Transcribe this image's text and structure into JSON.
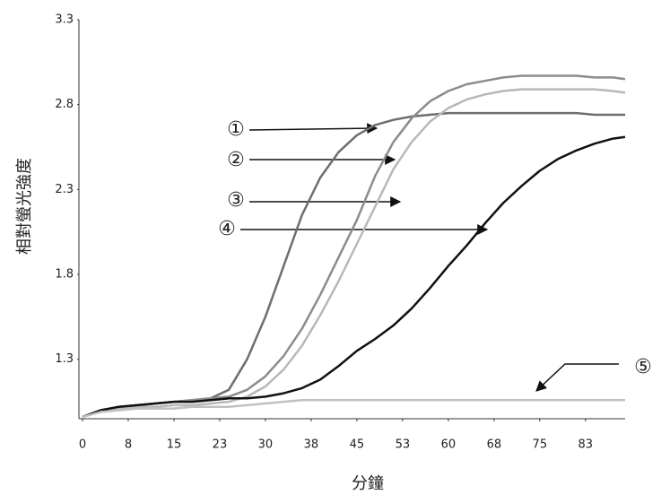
{
  "chart_data": {
    "type": "line",
    "x_label": "分鐘",
    "y_label": "相對螢光強度",
    "x": [
      0,
      3,
      6,
      9,
      12,
      15,
      18,
      21,
      24,
      27,
      30,
      33,
      36,
      39,
      42,
      45,
      48,
      51,
      54,
      57,
      60,
      63,
      66,
      69,
      72,
      75,
      78,
      81,
      84,
      87,
      89
    ],
    "series": [
      {
        "color": "#6e6e6e",
        "values": [
          0.96,
          1.0,
          1.02,
          1.03,
          1.04,
          1.05,
          1.06,
          1.07,
          1.12,
          1.3,
          1.55,
          1.85,
          2.15,
          2.37,
          2.52,
          2.62,
          2.68,
          2.71,
          2.73,
          2.74,
          2.75,
          2.75,
          2.75,
          2.75,
          2.75,
          2.75,
          2.75,
          2.75,
          2.74,
          2.74,
          2.74
        ]
      },
      {
        "color": "#8c8c8c",
        "values": [
          0.96,
          1.0,
          1.02,
          1.03,
          1.04,
          1.05,
          1.06,
          1.07,
          1.08,
          1.12,
          1.2,
          1.32,
          1.48,
          1.68,
          1.9,
          2.12,
          2.38,
          2.58,
          2.72,
          2.82,
          2.88,
          2.92,
          2.94,
          2.96,
          2.97,
          2.97,
          2.97,
          2.97,
          2.96,
          2.96,
          2.95
        ]
      },
      {
        "color": "#b8b8b8",
        "values": [
          0.96,
          1.0,
          1.01,
          1.02,
          1.02,
          1.03,
          1.03,
          1.04,
          1.05,
          1.08,
          1.14,
          1.24,
          1.38,
          1.56,
          1.76,
          1.98,
          2.2,
          2.42,
          2.58,
          2.7,
          2.78,
          2.83,
          2.86,
          2.88,
          2.89,
          2.89,
          2.89,
          2.89,
          2.89,
          2.88,
          2.87
        ]
      },
      {
        "color": "#111111",
        "values": [
          0.96,
          1.0,
          1.02,
          1.03,
          1.04,
          1.05,
          1.05,
          1.06,
          1.07,
          1.07,
          1.08,
          1.1,
          1.13,
          1.18,
          1.26,
          1.35,
          1.42,
          1.5,
          1.6,
          1.72,
          1.85,
          1.97,
          2.1,
          2.22,
          2.32,
          2.41,
          2.48,
          2.53,
          2.57,
          2.6,
          2.61
        ]
      },
      {
        "color": "#c0c0c0",
        "values": [
          0.96,
          0.99,
          1.0,
          1.01,
          1.01,
          1.01,
          1.02,
          1.02,
          1.02,
          1.03,
          1.04,
          1.05,
          1.06,
          1.06,
          1.06,
          1.06,
          1.06,
          1.06,
          1.06,
          1.06,
          1.06,
          1.06,
          1.06,
          1.06,
          1.06,
          1.06,
          1.06,
          1.06,
          1.06,
          1.06,
          1.06
        ]
      }
    ],
    "xlim": [
      0,
      89
    ],
    "xticks": [
      0,
      {
        "value": 7.5,
        "label": "8"
      },
      15,
      {
        "value": 22.5,
        "label": "23"
      },
      30,
      {
        "value": 37.5,
        "label": "38"
      },
      45,
      {
        "value": 52.5,
        "label": "53"
      },
      60,
      {
        "value": 67.5,
        "label": "68"
      },
      75,
      {
        "value": 82.5,
        "label": "83"
      }
    ],
    "ylim": [
      0.95,
      3.3
    ],
    "yticks": [
      1.3,
      1.8,
      2.3,
      2.8,
      3.3
    ],
    "grid": false,
    "annotations": [
      "①",
      "②",
      "③",
      "④",
      "⑤"
    ]
  }
}
